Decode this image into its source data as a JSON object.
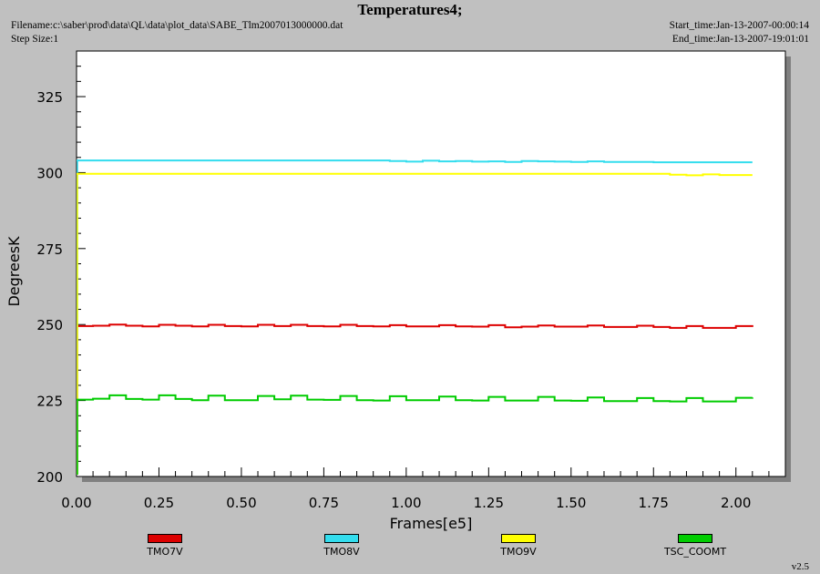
{
  "header": {
    "filename": "Filename:c:\\saber\\prod\\data\\QL\\data\\plot_data\\SABE_Tlm2007013000000.dat",
    "step_size": "Step Size:1",
    "start_time": "Start_time:Jan-13-2007-00:00:14",
    "end_time": "End_time:Jan-13-2007-19:01:01"
  },
  "version": "v2.5",
  "colors": {
    "background": "#c0c0c0",
    "plot_area": "#ffffff",
    "TMO7V": "#dd0000",
    "TMO8V": "#33ddee",
    "TMO9V": "#ffff00",
    "TSC_COOMT": "#00cc00"
  },
  "chart_data": {
    "type": "line",
    "title": "Temperatures4;",
    "xlabel": "Frames[e5]",
    "ylabel": "DegreesK",
    "xlim": [
      0,
      2.15
    ],
    "ylim": [
      200,
      340
    ],
    "x_ticks": [
      "0.00",
      "0.25",
      "0.50",
      "0.75",
      "1.00",
      "1.25",
      "1.50",
      "1.75",
      "2.00"
    ],
    "y_ticks": [
      "200",
      "225",
      "250",
      "275",
      "300",
      "325"
    ],
    "grid": false,
    "legend_position": "bottom",
    "x": [
      0.0,
      0.05,
      0.1,
      0.15,
      0.2,
      0.25,
      0.3,
      0.35,
      0.4,
      0.45,
      0.5,
      0.55,
      0.6,
      0.65,
      0.7,
      0.75,
      0.8,
      0.85,
      0.9,
      0.95,
      1.0,
      1.05,
      1.1,
      1.15,
      1.2,
      1.25,
      1.3,
      1.35,
      1.4,
      1.45,
      1.5,
      1.55,
      1.6,
      1.65,
      1.7,
      1.75,
      1.8,
      1.85,
      1.9,
      1.95,
      2.0,
      2.05
    ],
    "series": [
      {
        "name": "TMO7V",
        "color": "#dd0000",
        "values": [
          249.5,
          249.6,
          250.0,
          249.6,
          249.4,
          249.9,
          249.6,
          249.4,
          249.9,
          249.5,
          249.4,
          249.9,
          249.5,
          249.9,
          249.5,
          249.4,
          249.9,
          249.5,
          249.4,
          249.8,
          249.4,
          249.4,
          249.8,
          249.4,
          249.3,
          249.8,
          249.1,
          249.3,
          249.7,
          249.3,
          249.3,
          249.7,
          249.2,
          249.2,
          249.6,
          249.2,
          248.9,
          249.5,
          248.9,
          248.9,
          249.5,
          249.2
        ]
      },
      {
        "name": "TMO8V",
        "color": "#33ddee",
        "values": [
          304.0,
          304.0,
          304.0,
          304.0,
          304.0,
          304.0,
          304.0,
          304.0,
          304.0,
          304.0,
          304.0,
          304.0,
          304.0,
          304.0,
          304.0,
          304.0,
          304.0,
          304.0,
          304.0,
          303.8,
          303.6,
          303.9,
          303.7,
          303.8,
          303.6,
          303.7,
          303.5,
          303.8,
          303.7,
          303.6,
          303.5,
          303.7,
          303.5,
          303.5,
          303.5,
          303.4,
          303.4,
          303.4,
          303.4,
          303.4,
          303.4,
          303.4
        ]
      },
      {
        "name": "TMO9V",
        "color": "#ffff00",
        "values": [
          299.6,
          299.6,
          299.6,
          299.6,
          299.6,
          299.6,
          299.6,
          299.6,
          299.6,
          299.6,
          299.6,
          299.6,
          299.6,
          299.6,
          299.6,
          299.6,
          299.6,
          299.6,
          299.6,
          299.6,
          299.6,
          299.6,
          299.6,
          299.6,
          299.6,
          299.6,
          299.6,
          299.6,
          299.6,
          299.6,
          299.6,
          299.6,
          299.6,
          299.6,
          299.6,
          299.6,
          299.3,
          299.1,
          299.4,
          299.2,
          299.2,
          299.2
        ]
      },
      {
        "name": "TSC_COOMT",
        "color": "#00cc00",
        "values": [
          225.3,
          225.6,
          226.7,
          225.5,
          225.3,
          226.7,
          225.5,
          225.1,
          226.6,
          225.1,
          225.1,
          226.5,
          225.4,
          226.6,
          225.3,
          225.2,
          226.5,
          225.1,
          225.0,
          226.4,
          225.1,
          225.1,
          226.3,
          225.1,
          225.0,
          226.2,
          225.0,
          225.0,
          226.2,
          225.0,
          224.9,
          226.0,
          224.8,
          224.8,
          225.8,
          224.8,
          224.7,
          225.8,
          224.7,
          224.7,
          225.9,
          226.0
        ]
      }
    ]
  }
}
